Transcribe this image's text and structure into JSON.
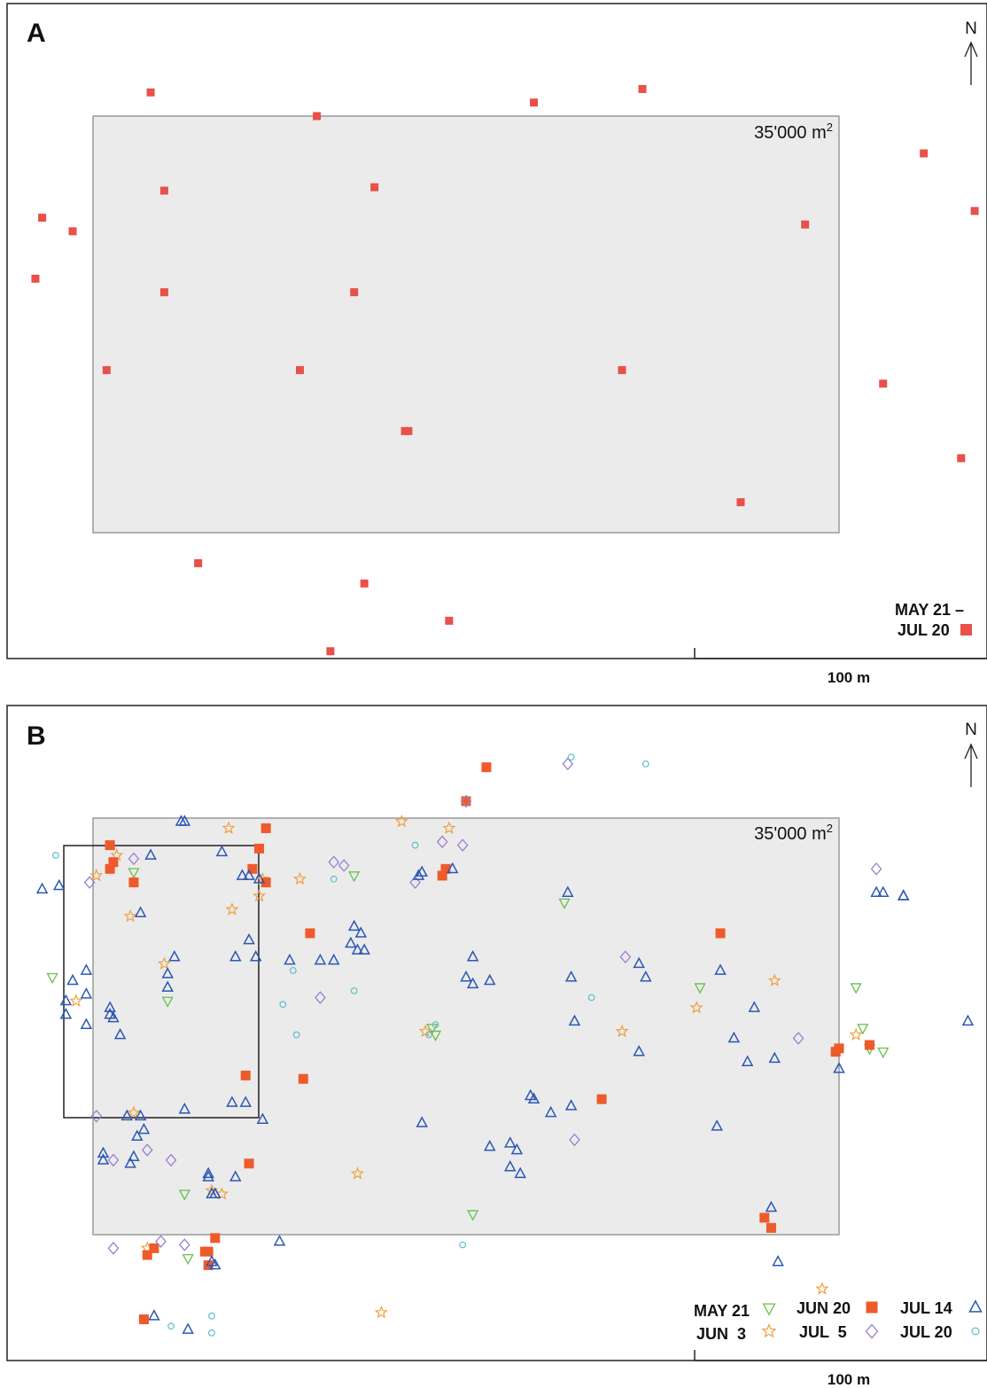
{
  "chart_data": [
    {
      "type": "scatter",
      "panel": "A",
      "area_label": "35'000 m",
      "area_label_sup": "2",
      "north": "N",
      "scale_bar": "100 m",
      "legend": [
        {
          "line1": "MAY 21 –",
          "line2": "JUL 20",
          "marker": "square",
          "color": "#e8504a"
        }
      ],
      "xlim": [
        0,
        290
      ],
      "ylim": [
        0,
        190
      ],
      "area_rect": {
        "x": [
          25,
          245
        ],
        "y": [
          45,
          168
        ]
      },
      "points": [
        [
          42,
          175
        ],
        [
          91,
          168
        ],
        [
          155,
          172
        ],
        [
          187,
          176
        ],
        [
          270,
          157
        ],
        [
          285,
          140
        ],
        [
          10,
          138
        ],
        [
          19,
          134
        ],
        [
          46,
          146
        ],
        [
          108,
          147
        ],
        [
          235,
          136
        ],
        [
          8,
          120
        ],
        [
          46,
          116
        ],
        [
          102,
          116
        ],
        [
          86,
          93
        ],
        [
          29,
          93
        ],
        [
          181,
          93
        ],
        [
          258,
          89
        ],
        [
          117,
          75
        ],
        [
          118,
          75
        ],
        [
          216,
          54
        ],
        [
          281,
          67
        ],
        [
          56,
          36
        ],
        [
          105,
          30
        ],
        [
          130,
          19
        ],
        [
          95,
          10
        ]
      ]
    },
    {
      "type": "scatter",
      "panel": "B",
      "area_label": "35'000 m",
      "area_label_sup": "2",
      "north": "N",
      "scale_bar": "100 m",
      "xlim": [
        0,
        290
      ],
      "ylim": [
        0,
        190
      ],
      "area_rect": {
        "x": [
          25,
          245
        ],
        "y": [
          45,
          168
        ]
      },
      "inset_rect": {
        "x": [
          16,
          74
        ],
        "y": [
          79,
          159
        ]
      },
      "legend": [
        {
          "label": "MAY 21",
          "marker": "tri-down",
          "color": "#6abf4b"
        },
        {
          "label": "JUN  3",
          "marker": "star",
          "color": "#f0a040"
        },
        {
          "label": "JUN 20",
          "marker": "square",
          "color": "#ef5a2a"
        },
        {
          "label": "JUL  5",
          "marker": "diamond",
          "color": "#9b7fd0"
        },
        {
          "label": "JUL 14",
          "marker": "tri-up",
          "color": "#2c57b6"
        },
        {
          "label": "JUL 20",
          "marker": "circle",
          "color": "#5bc0c8"
        }
      ],
      "series": [
        {
          "name": "MAY 21",
          "points": [
            [
              37,
              152
            ],
            [
              13,
              121
            ],
            [
              47,
              114
            ],
            [
              102,
              151
            ],
            [
              125,
              106
            ],
            [
              126,
              104
            ],
            [
              164,
              143
            ],
            [
              204,
              118
            ],
            [
              250,
              118
            ],
            [
              252,
              106
            ],
            [
              254,
              100
            ],
            [
              258,
              99
            ],
            [
              52,
              57
            ],
            [
              53,
              38
            ],
            [
              137,
              51
            ]
          ]
        },
        {
          "name": "JUN  3",
          "points": [
            [
              65,
              165
            ],
            [
              32,
              157
            ],
            [
              26,
              151
            ],
            [
              86,
              150
            ],
            [
              75,
              150
            ],
            [
              46,
              125
            ],
            [
              20,
              114
            ],
            [
              66,
              141
            ],
            [
              36,
              139
            ],
            [
              74,
              145
            ],
            [
              116,
              167
            ],
            [
              130,
              165
            ],
            [
              103,
              63
            ],
            [
              110,
              22
            ],
            [
              203,
              112
            ],
            [
              226,
              120
            ],
            [
              181,
              105
            ],
            [
              250,
              104
            ],
            [
              123,
              105
            ],
            [
              240,
              29
            ],
            [
              37,
              81
            ],
            [
              41,
              41
            ],
            [
              60,
              58
            ],
            [
              63,
              57
            ]
          ]
        },
        {
          "name": "JUN 20",
          "points": [
            [
              141,
              183
            ],
            [
              31,
              155
            ],
            [
              30,
              153
            ],
            [
              30,
              160
            ],
            [
              37,
              149
            ],
            [
              72,
              153
            ],
            [
              76,
              149
            ],
            [
              76,
              165
            ],
            [
              74,
              159
            ],
            [
              128,
              151
            ],
            [
              89,
              134
            ],
            [
              135,
              173
            ],
            [
              210,
              134
            ],
            [
              129,
              153
            ],
            [
              244,
              99
            ],
            [
              175,
              85
            ],
            [
              223,
              50
            ],
            [
              225,
              47
            ],
            [
              245,
              100
            ],
            [
              41,
              39
            ],
            [
              43,
              41
            ],
            [
              58,
              40
            ],
            [
              59,
              36
            ],
            [
              61,
              44
            ],
            [
              40,
              20
            ],
            [
              59,
              40
            ],
            [
              70,
              92
            ],
            [
              254,
              101
            ],
            [
              87,
              91
            ],
            [
              71,
              66
            ]
          ]
        },
        {
          "name": "JUL  5",
          "points": [
            [
              24,
              149
            ],
            [
              48,
              67
            ],
            [
              134,
              160
            ],
            [
              26,
              80
            ],
            [
              31,
              67
            ],
            [
              31,
              41
            ],
            [
              45,
              43
            ],
            [
              52,
              42
            ],
            [
              96,
              155
            ],
            [
              120,
              149
            ],
            [
              135,
              173
            ],
            [
              165,
              184
            ],
            [
              182,
              127
            ],
            [
              256,
              153
            ],
            [
              233,
              103
            ],
            [
              41,
              70
            ],
            [
              92,
              115
            ],
            [
              37,
              156
            ],
            [
              99,
              154
            ],
            [
              128,
              161
            ],
            [
              167,
              73
            ]
          ]
        },
        {
          "name": "JUL 14",
          "points": [
            [
              51,
              167
            ],
            [
              69,
              151
            ],
            [
              71,
              151
            ],
            [
              74,
              150
            ],
            [
              10,
              147
            ],
            [
              15,
              148
            ],
            [
              42,
              157
            ],
            [
              39,
              140
            ],
            [
              23,
              123
            ],
            [
              19,
              120
            ],
            [
              30,
              110
            ],
            [
              31,
              109
            ],
            [
              49,
              127
            ],
            [
              47,
              122
            ],
            [
              67,
              127
            ],
            [
              71,
              132
            ],
            [
              47,
              118
            ],
            [
              73,
              127
            ],
            [
              83,
              126
            ],
            [
              96,
              126
            ],
            [
              101,
              131
            ],
            [
              103,
              129
            ],
            [
              105,
              129
            ],
            [
              102,
              136
            ],
            [
              104,
              134
            ],
            [
              122,
              152
            ],
            [
              121,
              151
            ],
            [
              131,
              153
            ],
            [
              137,
              127
            ],
            [
              135,
              121
            ],
            [
              137,
              119
            ],
            [
              142,
              120
            ],
            [
              148,
              65
            ],
            [
              151,
              63
            ],
            [
              166,
              121
            ],
            [
              167,
              108
            ],
            [
              165,
              146
            ],
            [
              186,
              125
            ],
            [
              188,
              121
            ],
            [
              186,
              99
            ],
            [
              220,
              112
            ],
            [
              210,
              123
            ],
            [
              166,
              83
            ],
            [
              214,
              103
            ],
            [
              218,
              96
            ],
            [
              226,
              97
            ],
            [
              209,
              77
            ],
            [
              225,
              53
            ],
            [
              258,
              146
            ],
            [
              264,
              145
            ],
            [
              245,
              94
            ],
            [
              264,
              145
            ],
            [
              256,
              146
            ],
            [
              283,
              108
            ],
            [
              92,
              126
            ],
            [
              28,
              69
            ],
            [
              28,
              67
            ],
            [
              37,
              68
            ],
            [
              36,
              66
            ],
            [
              59,
              63
            ],
            [
              59,
              62
            ],
            [
              67,
              62
            ],
            [
              142,
              71
            ],
            [
              148,
              72
            ],
            [
              150,
              70
            ],
            [
              17,
              114
            ],
            [
              17,
              110
            ],
            [
              23,
              116
            ],
            [
              33,
              104
            ],
            [
              30,
              112
            ],
            [
              23,
              107
            ],
            [
              227,
              37
            ],
            [
              66,
              84
            ],
            [
              70,
              84
            ],
            [
              75,
              79
            ],
            [
              52,
              82
            ],
            [
              80,
              43
            ],
            [
              60,
              57
            ],
            [
              61,
              57
            ],
            [
              122,
              78
            ],
            [
              154,
              86
            ],
            [
              155,
              85
            ],
            [
              160,
              81
            ],
            [
              43,
              21
            ],
            [
              35,
              80
            ],
            [
              38,
              74
            ],
            [
              39,
              80
            ],
            [
              40,
              76
            ],
            [
              60,
              37
            ],
            [
              61,
              36
            ],
            [
              53,
              17
            ],
            [
              63,
              158
            ],
            [
              52,
              167
            ]
          ]
        },
        {
          "name": "JUL 20",
          "points": [
            [
              14,
              157
            ],
            [
              120,
              160
            ],
            [
              166,
              186
            ],
            [
              126,
              107
            ],
            [
              124,
              104
            ],
            [
              81,
              113
            ],
            [
              85,
              104
            ],
            [
              96,
              150
            ],
            [
              102,
              117
            ],
            [
              84,
              123
            ],
            [
              134,
              42
            ],
            [
              188,
              184
            ],
            [
              172,
              115
            ],
            [
              48,
              18
            ],
            [
              60,
              16
            ],
            [
              60,
              21
            ]
          ]
        }
      ]
    }
  ]
}
